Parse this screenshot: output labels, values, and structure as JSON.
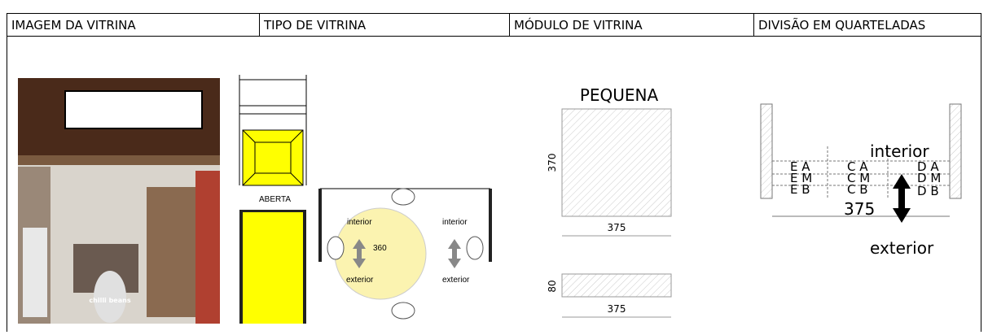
{
  "header": {
    "columns": [
      "IMAGEM DA VITRINA",
      "TIPO DE VITRINA",
      "MÓDULO DE VITRINA",
      "DIVISÃO EM QUARTELADAS"
    ]
  },
  "photo": {
    "logo": "chilli beans"
  },
  "tipo": {
    "label": "ABERTA",
    "rotation": {
      "interior_left": "interior",
      "interior_right": "interior",
      "angle": "360",
      "exterior_left": "exterior",
      "exterior_right": "exterior"
    }
  },
  "modulo": {
    "title": "PEQUENA",
    "top": {
      "height": "370",
      "width": "375"
    },
    "bottom": {
      "height": "80",
      "width": "375"
    }
  },
  "quarteladas": {
    "cells": [
      "E A",
      "E M",
      "E B",
      "C A",
      "C M",
      "C B",
      "D A",
      "D M",
      "D B"
    ],
    "interior": "interior",
    "width": "375",
    "exterior": "exterior"
  }
}
